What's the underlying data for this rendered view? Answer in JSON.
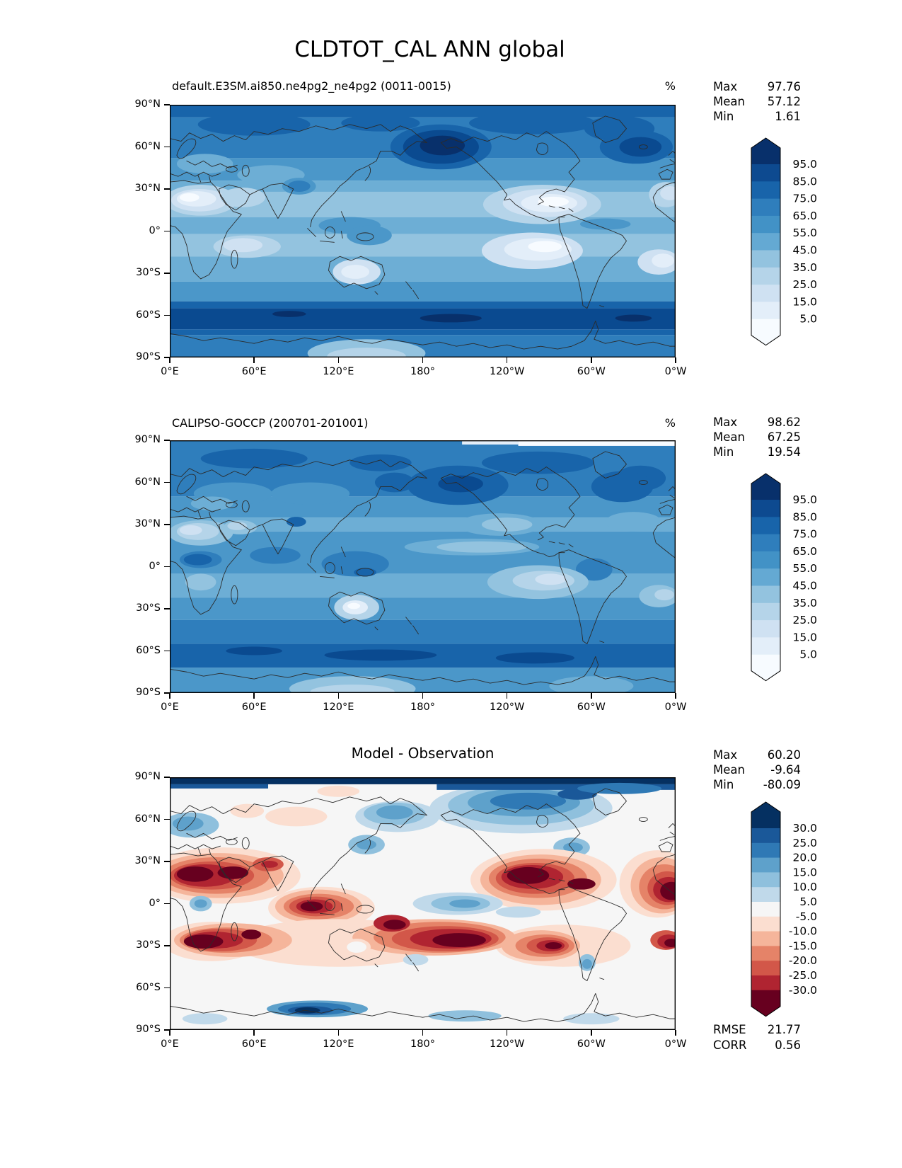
{
  "figure": {
    "title": "CLDTOT_CAL ANN global"
  },
  "axes": {
    "lat_ticks": [
      "90°N",
      "60°N",
      "30°N",
      "0°",
      "30°S",
      "60°S",
      "90°S"
    ],
    "lon_ticks": [
      "0°E",
      "60°E",
      "120°E",
      "180°",
      "120°W",
      "60°W",
      "0°W"
    ]
  },
  "panels": [
    {
      "title": "default.E3SM.ai850.ne4pg2_ne4pg2 (0011-0015)",
      "units": "%",
      "stats": [
        {
          "label": "Max",
          "value": "97.76"
        },
        {
          "label": "Mean",
          "value": "57.12"
        },
        {
          "label": "Min",
          "value": "1.61"
        }
      ],
      "colorbar": {
        "labels": [
          "95.0",
          "85.0",
          "75.0",
          "65.0",
          "55.0",
          "45.0",
          "35.0",
          "25.0",
          "15.0",
          "5.0"
        ],
        "colors": [
          "#08306b",
          "#0d4a90",
          "#1864aa",
          "#2f7ebc",
          "#4292c6",
          "#64a9d3",
          "#93c3df",
          "#b5d4e9",
          "#cfe1f2",
          "#e3eef9",
          "#f7fbff"
        ]
      }
    },
    {
      "title": "CALIPSO-GOCCP (200701-201001)",
      "units": "%",
      "stats": [
        {
          "label": "Max",
          "value": "98.62"
        },
        {
          "label": "Mean",
          "value": "67.25"
        },
        {
          "label": "Min",
          "value": "19.54"
        }
      ],
      "colorbar": {
        "labels": [
          "95.0",
          "85.0",
          "75.0",
          "65.0",
          "55.0",
          "45.0",
          "35.0",
          "25.0",
          "15.0",
          "5.0"
        ],
        "colors": [
          "#08306b",
          "#0d4a90",
          "#1864aa",
          "#2f7ebc",
          "#4292c6",
          "#64a9d3",
          "#93c3df",
          "#b5d4e9",
          "#cfe1f2",
          "#e3eef9",
          "#f7fbff"
        ]
      }
    },
    {
      "title": "Model - Observation",
      "units": "",
      "stats": [
        {
          "label": "Max",
          "value": "60.20"
        },
        {
          "label": "Mean",
          "value": "-9.64"
        },
        {
          "label": "Min",
          "value": "-80.09"
        }
      ],
      "colorbar": {
        "labels": [
          "30.0",
          "25.0",
          "20.0",
          "15.0",
          "10.0",
          "5.0",
          "-5.0",
          "-10.0",
          "-15.0",
          "-20.0",
          "-25.0",
          "-30.0"
        ],
        "colors": [
          "#053061",
          "#1a5899",
          "#2f79b5",
          "#5ea1cb",
          "#8fc0dd",
          "#c0d9ea",
          "#f6f6f6",
          "#fbded0",
          "#f5b59b",
          "#e58368",
          "#d25749",
          "#b02431",
          "#67001f"
        ]
      },
      "metrics": [
        {
          "label": "RMSE",
          "value": "21.77"
        },
        {
          "label": "CORR",
          "value": "0.56"
        }
      ]
    }
  ],
  "chart_data": [
    {
      "type": "heatmap",
      "subtype": "filled-contour-map",
      "title": "default.E3SM.ai850.ne4pg2_ne4pg2 (0011-0015)",
      "variable": "CLDTOT_CAL",
      "season": "ANN",
      "region": "global",
      "units": "%",
      "colormap": "Blues",
      "contour_levels": [
        5,
        15,
        25,
        35,
        45,
        55,
        65,
        75,
        85,
        95
      ],
      "extend": "both",
      "stats": {
        "max": 97.76,
        "mean": 57.12,
        "min": 1.61
      },
      "lat_range": [
        -90,
        90
      ],
      "lon_range": [
        0,
        360
      ],
      "lat_tick_values": [
        90,
        60,
        30,
        0,
        -30,
        -60,
        -90
      ],
      "lon_tick_values": [
        0,
        60,
        120,
        180,
        240,
        300,
        360
      ]
    },
    {
      "type": "heatmap",
      "subtype": "filled-contour-map",
      "title": "CALIPSO-GOCCP (200701-201001)",
      "variable": "CLDTOT_CAL",
      "season": "ANN",
      "region": "global",
      "units": "%",
      "colormap": "Blues",
      "contour_levels": [
        5,
        15,
        25,
        35,
        45,
        55,
        65,
        75,
        85,
        95
      ],
      "extend": "both",
      "stats": {
        "max": 98.62,
        "mean": 67.25,
        "min": 19.54
      },
      "lat_range": [
        -90,
        90
      ],
      "lon_range": [
        0,
        360
      ],
      "lat_tick_values": [
        90,
        60,
        30,
        0,
        -30,
        -60,
        -90
      ],
      "lon_tick_values": [
        0,
        60,
        120,
        180,
        240,
        300,
        360
      ]
    },
    {
      "type": "heatmap",
      "subtype": "filled-contour-map",
      "title": "Model - Observation",
      "variable": "CLDTOT_CAL",
      "season": "ANN",
      "region": "global",
      "units": "%",
      "colormap": "RdBu (blue positive, red negative)",
      "contour_levels": [
        -30,
        -25,
        -20,
        -15,
        -10,
        -5,
        5,
        10,
        15,
        20,
        25,
        30
      ],
      "extend": "both",
      "stats": {
        "max": 60.2,
        "mean": -9.64,
        "min": -80.09
      },
      "metrics": {
        "rmse": 21.77,
        "corr": 0.56
      },
      "lat_range": [
        -90,
        90
      ],
      "lon_range": [
        0,
        360
      ],
      "lat_tick_values": [
        90,
        60,
        30,
        0,
        -30,
        -60,
        -90
      ],
      "lon_tick_values": [
        0,
        60,
        120,
        180,
        240,
        300,
        360
      ]
    }
  ]
}
